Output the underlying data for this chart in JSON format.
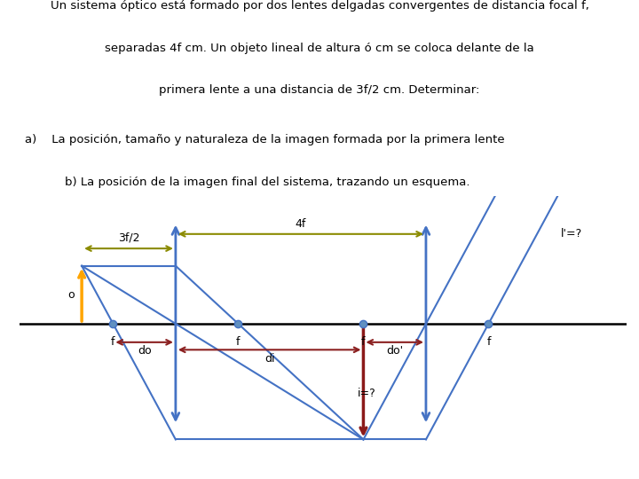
{
  "title_line1": "Un sistema óptico está formado por dos lentes delgadas convergentes de distancia focal f,",
  "title_line2": "separadas 4f cm. Un objeto lineal de altura ó cm se coloca delante de la",
  "title_line3": "primera lente a una distancia de 3f/2 cm. Determinar:",
  "part_a": "a)    La posición, tamaño y naturaleza de la imagen formada por la primera lente",
  "part_b": "    b) La posición de la imagen final del sistema, trazando un esquema.",
  "bg_color": "#ffffff",
  "blue": "#4472C4",
  "orange": "#FFA500",
  "olive": "#8B8B00",
  "dark_red": "#8B2020",
  "crimson": "#8B1A1A",
  "fp_color": "#4472C4",
  "diagram_xlim": [
    -2.5,
    7.2
  ],
  "diagram_ylim": [
    -2.6,
    2.2
  ]
}
